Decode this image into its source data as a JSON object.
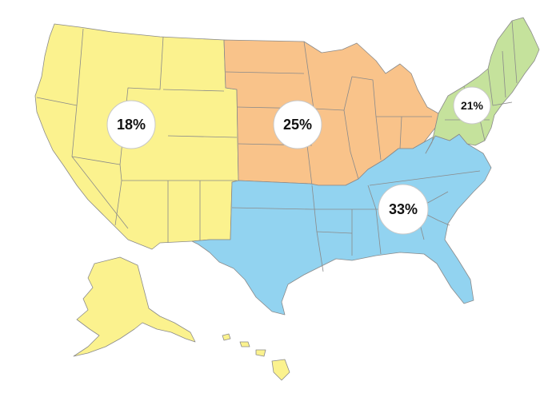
{
  "map": {
    "regions": [
      {
        "id": "west",
        "percent_label": "18%",
        "color": "#fbf28e"
      },
      {
        "id": "midwest",
        "percent_label": "25%",
        "color": "#f9c38a"
      },
      {
        "id": "south",
        "percent_label": "33%",
        "color": "#92d3f0"
      },
      {
        "id": "northeast",
        "percent_label": "21%",
        "color": "#c5e29c"
      }
    ],
    "border_color": "#8a8a8a"
  }
}
